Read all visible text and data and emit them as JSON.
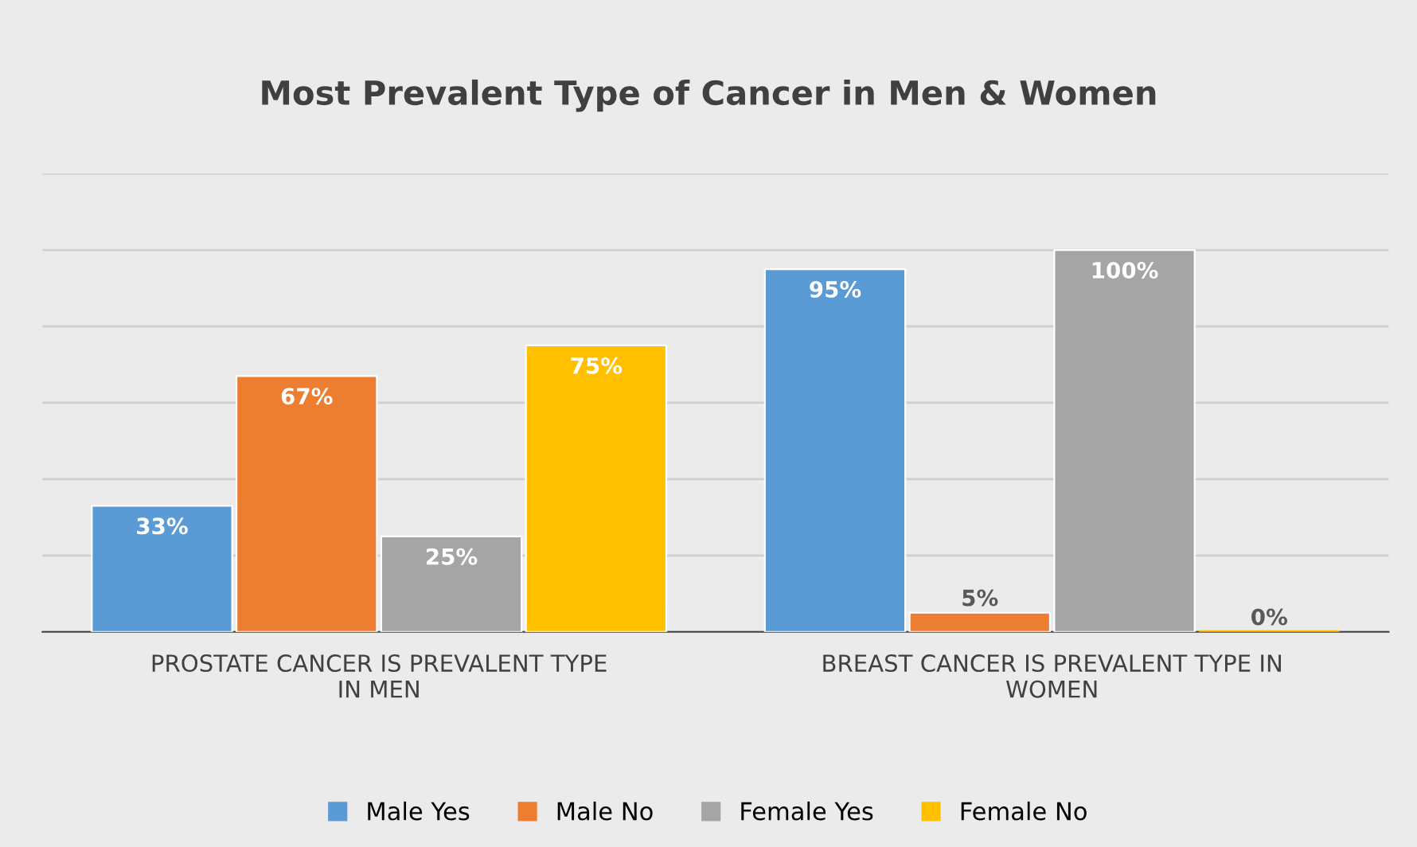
{
  "chart_data": {
    "type": "bar",
    "title": "Most Prevalent Type of Cancer in Men & Women",
    "categories": [
      "PROSTATE CANCER IS PREVALENT TYPE IN MEN",
      "BREAST CANCER IS PREVALENT TYPE IN WOMEN"
    ],
    "series": [
      {
        "name": "Male Yes",
        "color": "#5b9bd5",
        "values": [
          33,
          95
        ],
        "value_labels": [
          "33%",
          "95%"
        ]
      },
      {
        "name": "Male No",
        "color": "#ed7d31",
        "values": [
          67,
          5
        ],
        "value_labels": [
          "67%",
          "5%"
        ]
      },
      {
        "name": "Female Yes",
        "color": "#a5a5a5",
        "values": [
          25,
          100
        ],
        "value_labels": [
          "25%",
          "100%"
        ]
      },
      {
        "name": "Female No",
        "color": "#ffc000",
        "values": [
          75,
          0
        ],
        "value_labels": [
          "75%",
          "0%"
        ]
      }
    ],
    "ylim": [
      0,
      120
    ],
    "yticks": [
      {
        "value": 0,
        "label": null
      },
      {
        "value": 20,
        "label": null
      },
      {
        "value": 40,
        "label": null
      },
      {
        "value": 60,
        "label": null
      },
      {
        "value": 80,
        "label": null
      },
      {
        "value": 100,
        "label": null
      },
      {
        "value": 120,
        "label": null
      }
    ],
    "tick_labels": "x",
    "grid": "y",
    "legend": "bottom"
  }
}
